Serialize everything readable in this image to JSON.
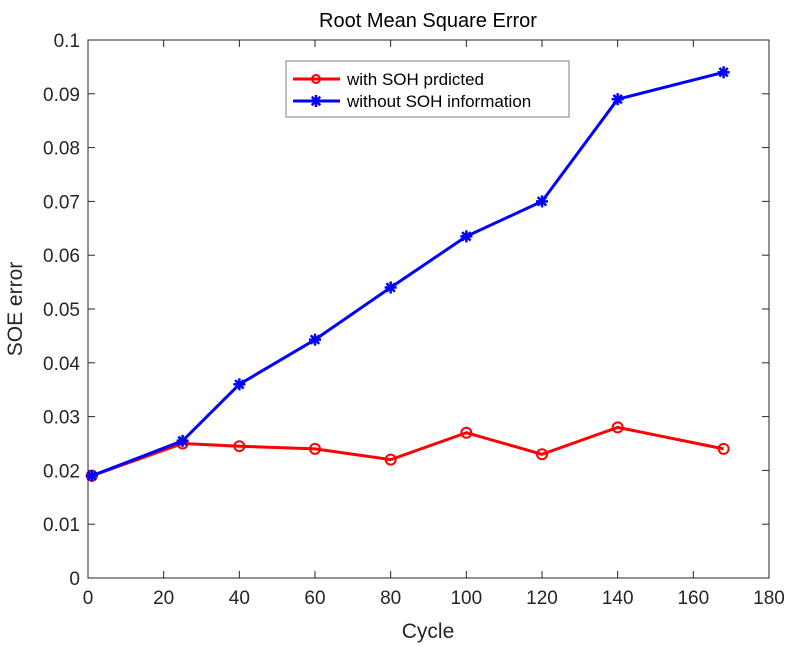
{
  "chart_data": {
    "type": "line",
    "title": "Root Mean Square Error",
    "xlabel": "Cycle",
    "ylabel": "SOE error",
    "xlim": [
      0,
      180
    ],
    "ylim": [
      0,
      0.1
    ],
    "xticks": [
      0,
      20,
      40,
      60,
      80,
      100,
      120,
      140,
      160,
      180
    ],
    "xtick_labels": [
      "0",
      "20",
      "40",
      "60",
      "80",
      "100",
      "120",
      "140",
      "160",
      "180"
    ],
    "yticks": [
      0,
      0.01,
      0.02,
      0.03,
      0.04,
      0.05,
      0.06,
      0.07,
      0.08,
      0.09,
      0.1
    ],
    "ytick_labels": [
      "0",
      "0.01",
      "0.02",
      "0.03",
      "0.04",
      "0.05",
      "0.06",
      "0.07",
      "0.08",
      "0.09",
      "0.1"
    ],
    "grid": false,
    "legend_position": "upper center",
    "x": [
      1,
      25,
      40,
      60,
      80,
      100,
      120,
      140,
      168
    ],
    "series": [
      {
        "name": "with SOH prdicted",
        "color": "#ff0000",
        "marker": "circle",
        "values": [
          0.019,
          0.025,
          0.0245,
          0.024,
          0.022,
          0.027,
          0.023,
          0.028,
          0.024
        ]
      },
      {
        "name": "without SOH information",
        "color": "#0000ff",
        "marker": "asterisk",
        "values": [
          0.019,
          0.0255,
          0.036,
          0.0443,
          0.054,
          0.0635,
          0.07,
          0.089,
          0.094
        ]
      }
    ]
  }
}
